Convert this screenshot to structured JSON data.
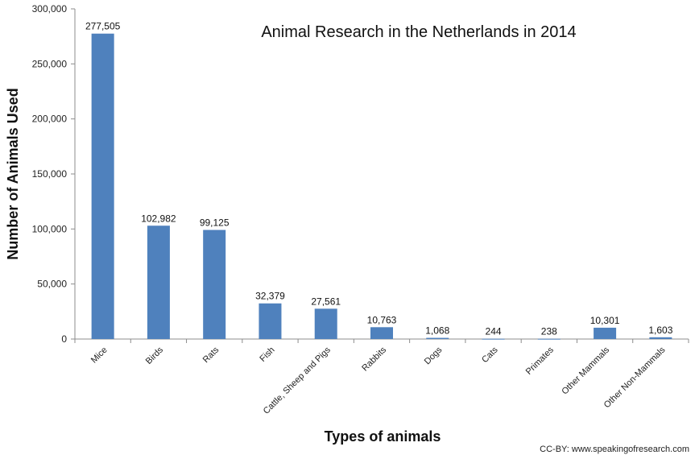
{
  "chart_data": {
    "type": "bar",
    "title": "Animal Research in the Netherlands in 2014",
    "xlabel": "Types of animals",
    "ylabel": "Number of Animals Used",
    "categories": [
      "Mice",
      "Birds",
      "Rats",
      "Fish",
      "Cattle, Sheep and Pigs",
      "Rabbits",
      "Dogs",
      "Cats",
      "Primates",
      "Other Mammals",
      "Other Non-Mammals"
    ],
    "values": [
      277505,
      102982,
      99125,
      32379,
      27561,
      10763,
      1068,
      244,
      238,
      10301,
      1603
    ],
    "data_labels": [
      "277,505",
      "102,982",
      "99,125",
      "32,379",
      "27,561",
      "10,763",
      "1,068",
      "244",
      "238",
      "10,301",
      "1,603"
    ],
    "ylim": [
      0,
      300000
    ],
    "yticks": [
      "0",
      "50,000",
      "100,000",
      "150,000",
      "200,000",
      "250,000",
      "300,000"
    ],
    "grid": false,
    "legend": "none",
    "bar_color": "#4F81BD",
    "credit": "CC-BY: www.speakingofresearch.com"
  }
}
